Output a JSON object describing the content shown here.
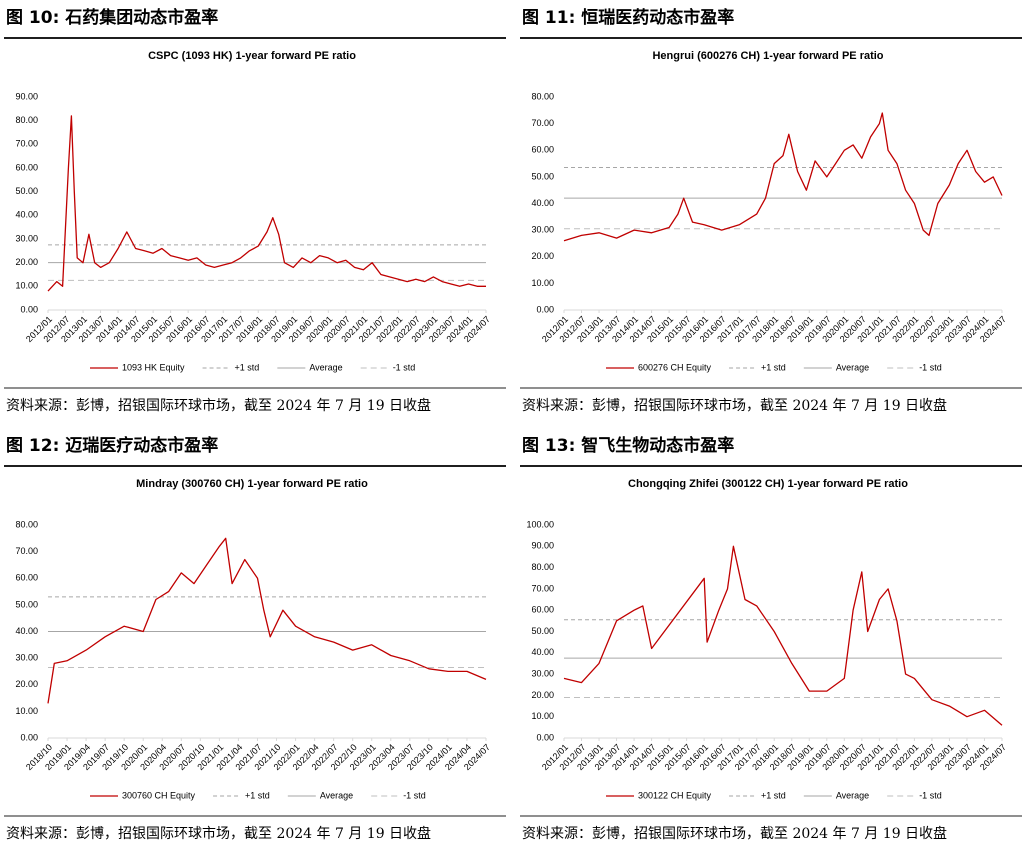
{
  "chart_data": [
    {
      "type": "line",
      "figure_label": "图 10: 石药集团动态市盈率",
      "title": "CSPC (1093 HK) 1-year forward PE ratio",
      "source": "资料来源：彭博，招银国际环球市场，截至 2024 年 7 月 19 日收盘",
      "xlim": [
        "2012/01",
        "2024/07"
      ],
      "xticks": [
        "2012/01",
        "2012/07",
        "2013/01",
        "2013/07",
        "2014/01",
        "2014/07",
        "2015/01",
        "2015/07",
        "2016/01",
        "2016/07",
        "2017/01",
        "2017/07",
        "2018/01",
        "2018/07",
        "2019/01",
        "2019/07",
        "2020/01",
        "2020/07",
        "2021/01",
        "2021/07",
        "2022/01",
        "2022/07",
        "2023/01",
        "2023/07",
        "2024/01",
        "2024/07"
      ],
      "ylim": [
        0,
        90
      ],
      "yticks": [
        {
          "value": 0,
          "label": "0.00"
        },
        {
          "value": 10,
          "label": "10.00"
        },
        {
          "value": 20,
          "label": "20.00"
        },
        {
          "value": 30,
          "label": "30.00"
        },
        {
          "value": 40,
          "label": "40.00"
        },
        {
          "value": 50,
          "label": "50.00"
        },
        {
          "value": 60,
          "label": "60.00"
        },
        {
          "value": 70,
          "label": "70.00"
        },
        {
          "value": 80,
          "label": "80.00"
        },
        {
          "value": 90,
          "label": "90.00"
        }
      ],
      "series": [
        {
          "name": "1093 HK Equity",
          "color": "#c00000",
          "x": [
            "2012/01",
            "2012/04",
            "2012/06",
            "2012/08",
            "2012/09",
            "2012/10",
            "2012/11",
            "2013/01",
            "2013/03",
            "2013/05",
            "2013/07",
            "2013/10",
            "2014/01",
            "2014/04",
            "2014/07",
            "2014/10",
            "2015/01",
            "2015/04",
            "2015/07",
            "2015/10",
            "2016/01",
            "2016/04",
            "2016/07",
            "2016/10",
            "2017/01",
            "2017/04",
            "2017/07",
            "2017/10",
            "2018/01",
            "2018/04",
            "2018/06",
            "2018/08",
            "2018/10",
            "2019/01",
            "2019/04",
            "2019/07",
            "2019/10",
            "2020/01",
            "2020/04",
            "2020/07",
            "2020/10",
            "2021/01",
            "2021/04",
            "2021/07",
            "2021/10",
            "2022/01",
            "2022/04",
            "2022/07",
            "2022/10",
            "2023/01",
            "2023/04",
            "2023/07",
            "2023/10",
            "2024/01",
            "2024/04",
            "2024/07"
          ],
          "values": [
            8,
            12,
            10,
            60,
            82,
            50,
            22,
            20,
            32,
            20,
            18,
            20,
            26,
            33,
            26,
            25,
            24,
            26,
            23,
            22,
            21,
            22,
            19,
            18,
            19,
            20,
            22,
            25,
            27,
            33,
            39,
            32,
            20,
            18,
            22,
            20,
            23,
            22,
            20,
            21,
            18,
            17,
            20,
            15,
            14,
            13,
            12,
            13,
            12,
            14,
            12,
            11,
            10,
            11,
            10,
            10
          ]
        }
      ],
      "reference_lines": [
        {
          "name": "+1 std",
          "value": 27.5,
          "color": "#a6a6a6",
          "dash": "4 3"
        },
        {
          "name": "Average",
          "value": 20,
          "color": "#a6a6a6",
          "dash": "none"
        },
        {
          "name": "-1 std",
          "value": 12.5,
          "color": "#bfbfbf",
          "dash": "6 4"
        }
      ]
    },
    {
      "type": "line",
      "figure_label": "图 11: 恒瑞医药动态市盈率",
      "title": "Hengrui (600276 CH) 1-year forward PE ratio",
      "source": "资料来源：彭博，招银国际环球市场，截至 2024 年 7 月 19 日收盘",
      "xlim": [
        "2012/01",
        "2024/07"
      ],
      "xticks": [
        "2012/01",
        "2012/07",
        "2013/01",
        "2013/07",
        "2014/01",
        "2014/07",
        "2015/01",
        "2015/07",
        "2016/01",
        "2016/07",
        "2017/01",
        "2017/07",
        "2018/01",
        "2018/07",
        "2019/01",
        "2019/07",
        "2020/01",
        "2020/07",
        "2021/01",
        "2021/07",
        "2022/01",
        "2022/07",
        "2023/01",
        "2023/07",
        "2024/01",
        "2024/07"
      ],
      "ylim": [
        0,
        80
      ],
      "yticks": [
        {
          "value": 0,
          "label": "0.00"
        },
        {
          "value": 10,
          "label": "10.00"
        },
        {
          "value": 20,
          "label": "20.00"
        },
        {
          "value": 30,
          "label": "30.00"
        },
        {
          "value": 40,
          "label": "40.00"
        },
        {
          "value": 50,
          "label": "50.00"
        },
        {
          "value": 60,
          "label": "60.00"
        },
        {
          "value": 70,
          "label": "70.00"
        },
        {
          "value": 80,
          "label": "80.00"
        }
      ],
      "series": [
        {
          "name": "600276 CH Equity",
          "color": "#c00000",
          "x": [
            "2012/01",
            "2012/07",
            "2013/01",
            "2013/07",
            "2014/01",
            "2014/07",
            "2015/01",
            "2015/04",
            "2015/06",
            "2015/09",
            "2016/01",
            "2016/07",
            "2017/01",
            "2017/07",
            "2017/10",
            "2018/01",
            "2018/04",
            "2018/06",
            "2018/09",
            "2018/12",
            "2019/03",
            "2019/07",
            "2019/10",
            "2020/01",
            "2020/04",
            "2020/07",
            "2020/10",
            "2021/01",
            "2021/02",
            "2021/04",
            "2021/07",
            "2021/10",
            "2022/01",
            "2022/04",
            "2022/06",
            "2022/09",
            "2023/01",
            "2023/04",
            "2023/07",
            "2023/10",
            "2024/01",
            "2024/04",
            "2024/07"
          ],
          "values": [
            26,
            28,
            29,
            27,
            30,
            29,
            31,
            36,
            42,
            33,
            32,
            30,
            32,
            36,
            42,
            55,
            58,
            66,
            52,
            45,
            56,
            50,
            55,
            60,
            62,
            57,
            65,
            70,
            74,
            60,
            55,
            45,
            40,
            30,
            28,
            40,
            47,
            55,
            60,
            52,
            48,
            50,
            43
          ]
        }
      ],
      "reference_lines": [
        {
          "name": "+1 std",
          "value": 53.5,
          "color": "#a6a6a6",
          "dash": "4 3"
        },
        {
          "name": "Average",
          "value": 42,
          "color": "#a6a6a6",
          "dash": "none"
        },
        {
          "name": "-1 std",
          "value": 30.5,
          "color": "#bfbfbf",
          "dash": "6 4"
        }
      ]
    },
    {
      "type": "line",
      "figure_label": "图 12: 迈瑞医疗动态市盈率",
      "title": "Mindray (300760 CH) 1-year forward PE ratio",
      "source": "资料来源：彭博，招银国际环球市场，截至 2024 年 7 月 19 日收盘",
      "xlim": [
        "2018/10",
        "2024/07"
      ],
      "xticks": [
        "2018/10",
        "2019/01",
        "2019/04",
        "2019/07",
        "2019/10",
        "2020/01",
        "2020/04",
        "2020/07",
        "2020/10",
        "2021/01",
        "2021/04",
        "2021/07",
        "2021/10",
        "2022/01",
        "2022/04",
        "2022/07",
        "2022/10",
        "2023/01",
        "2023/04",
        "2023/07",
        "2023/10",
        "2024/01",
        "2024/04",
        "2024/07"
      ],
      "ylim": [
        0,
        80
      ],
      "yticks": [
        {
          "value": 0,
          "label": "0.00"
        },
        {
          "value": 10,
          "label": "10.00"
        },
        {
          "value": 20,
          "label": "20.00"
        },
        {
          "value": 30,
          "label": "30.00"
        },
        {
          "value": 40,
          "label": "40.00"
        },
        {
          "value": 50,
          "label": "50.00"
        },
        {
          "value": 60,
          "label": "60.00"
        },
        {
          "value": 70,
          "label": "70.00"
        },
        {
          "value": 80,
          "label": "80.00"
        }
      ],
      "series": [
        {
          "name": "300760 CH Equity",
          "color": "#c00000",
          "x": [
            "2018/10",
            "2018/11",
            "2019/01",
            "2019/04",
            "2019/07",
            "2019/10",
            "2020/01",
            "2020/03",
            "2020/05",
            "2020/07",
            "2020/09",
            "2020/11",
            "2021/01",
            "2021/02",
            "2021/03",
            "2021/05",
            "2021/07",
            "2021/08",
            "2021/09",
            "2021/11",
            "2022/01",
            "2022/04",
            "2022/07",
            "2022/10",
            "2023/01",
            "2023/04",
            "2023/07",
            "2023/10",
            "2024/01",
            "2024/04",
            "2024/07"
          ],
          "values": [
            13,
            28,
            29,
            33,
            38,
            42,
            40,
            52,
            55,
            62,
            58,
            65,
            72,
            75,
            58,
            67,
            60,
            48,
            38,
            48,
            42,
            38,
            36,
            33,
            35,
            31,
            29,
            26,
            25,
            25,
            22
          ]
        }
      ],
      "reference_lines": [
        {
          "name": "+1 std",
          "value": 53,
          "color": "#a6a6a6",
          "dash": "4 3"
        },
        {
          "name": "Average",
          "value": 40,
          "color": "#a6a6a6",
          "dash": "none"
        },
        {
          "name": "-1 std",
          "value": 26.5,
          "color": "#bfbfbf",
          "dash": "6 4"
        }
      ]
    },
    {
      "type": "line",
      "figure_label": "图 13: 智飞生物动态市盈率",
      "title": "Chongqing Zhifei (300122 CH) 1-year forward PE ratio",
      "source": "资料来源：彭博，招银国际环球市场，截至 2024 年 7 月 19 日收盘",
      "xlim": [
        "2012/01",
        "2024/07"
      ],
      "xticks": [
        "2012/01",
        "2012/07",
        "2013/01",
        "2013/07",
        "2014/01",
        "2014/07",
        "2015/01",
        "2015/07",
        "2016/01",
        "2016/07",
        "2017/01",
        "2017/07",
        "2018/01",
        "2018/07",
        "2019/01",
        "2019/07",
        "2020/01",
        "2020/07",
        "2021/01",
        "2021/07",
        "2022/01",
        "2022/07",
        "2023/01",
        "2023/07",
        "2024/01",
        "2024/07"
      ],
      "ylim": [
        0,
        100
      ],
      "yticks": [
        {
          "value": 0,
          "label": "0.00"
        },
        {
          "value": 10,
          "label": "10.00"
        },
        {
          "value": 20,
          "label": "20.00"
        },
        {
          "value": 30,
          "label": "30.00"
        },
        {
          "value": 40,
          "label": "40.00"
        },
        {
          "value": 50,
          "label": "50.00"
        },
        {
          "value": 60,
          "label": "60.00"
        },
        {
          "value": 70,
          "label": "70.00"
        },
        {
          "value": 80,
          "label": "80.00"
        },
        {
          "value": 90,
          "label": "90.00"
        },
        {
          "value": 100,
          "label": "100.00"
        }
      ],
      "series": [
        {
          "name": "300122 CH Equity",
          "color": "#c00000",
          "x": [
            "2012/01",
            "2012/07",
            "2013/01",
            "2013/07",
            "2014/01",
            "2014/04",
            "2014/07",
            "2016/01",
            "2016/02",
            "2016/06",
            "2016/09",
            "2016/11",
            "2017/03",
            "2017/07",
            "2018/01",
            "2018/07",
            "2019/01",
            "2019/07",
            "2020/01",
            "2020/04",
            "2020/07",
            "2020/09",
            "2021/01",
            "2021/04",
            "2021/07",
            "2021/10",
            "2022/01",
            "2022/07",
            "2023/01",
            "2023/07",
            "2024/01",
            "2024/07"
          ],
          "values": [
            28,
            26,
            35,
            55,
            60,
            62,
            42,
            75,
            45,
            60,
            70,
            90,
            65,
            62,
            50,
            35,
            22,
            22,
            28,
            60,
            78,
            50,
            65,
            70,
            55,
            30,
            28,
            18,
            15,
            10,
            13,
            6
          ]
        }
      ],
      "reference_lines": [
        {
          "name": "+1 std",
          "value": 55.5,
          "color": "#a6a6a6",
          "dash": "4 3"
        },
        {
          "name": "Average",
          "value": 37.5,
          "color": "#a6a6a6",
          "dash": "none"
        },
        {
          "name": "-1 std",
          "value": 19,
          "color": "#bfbfbf",
          "dash": "6 4"
        }
      ]
    }
  ]
}
